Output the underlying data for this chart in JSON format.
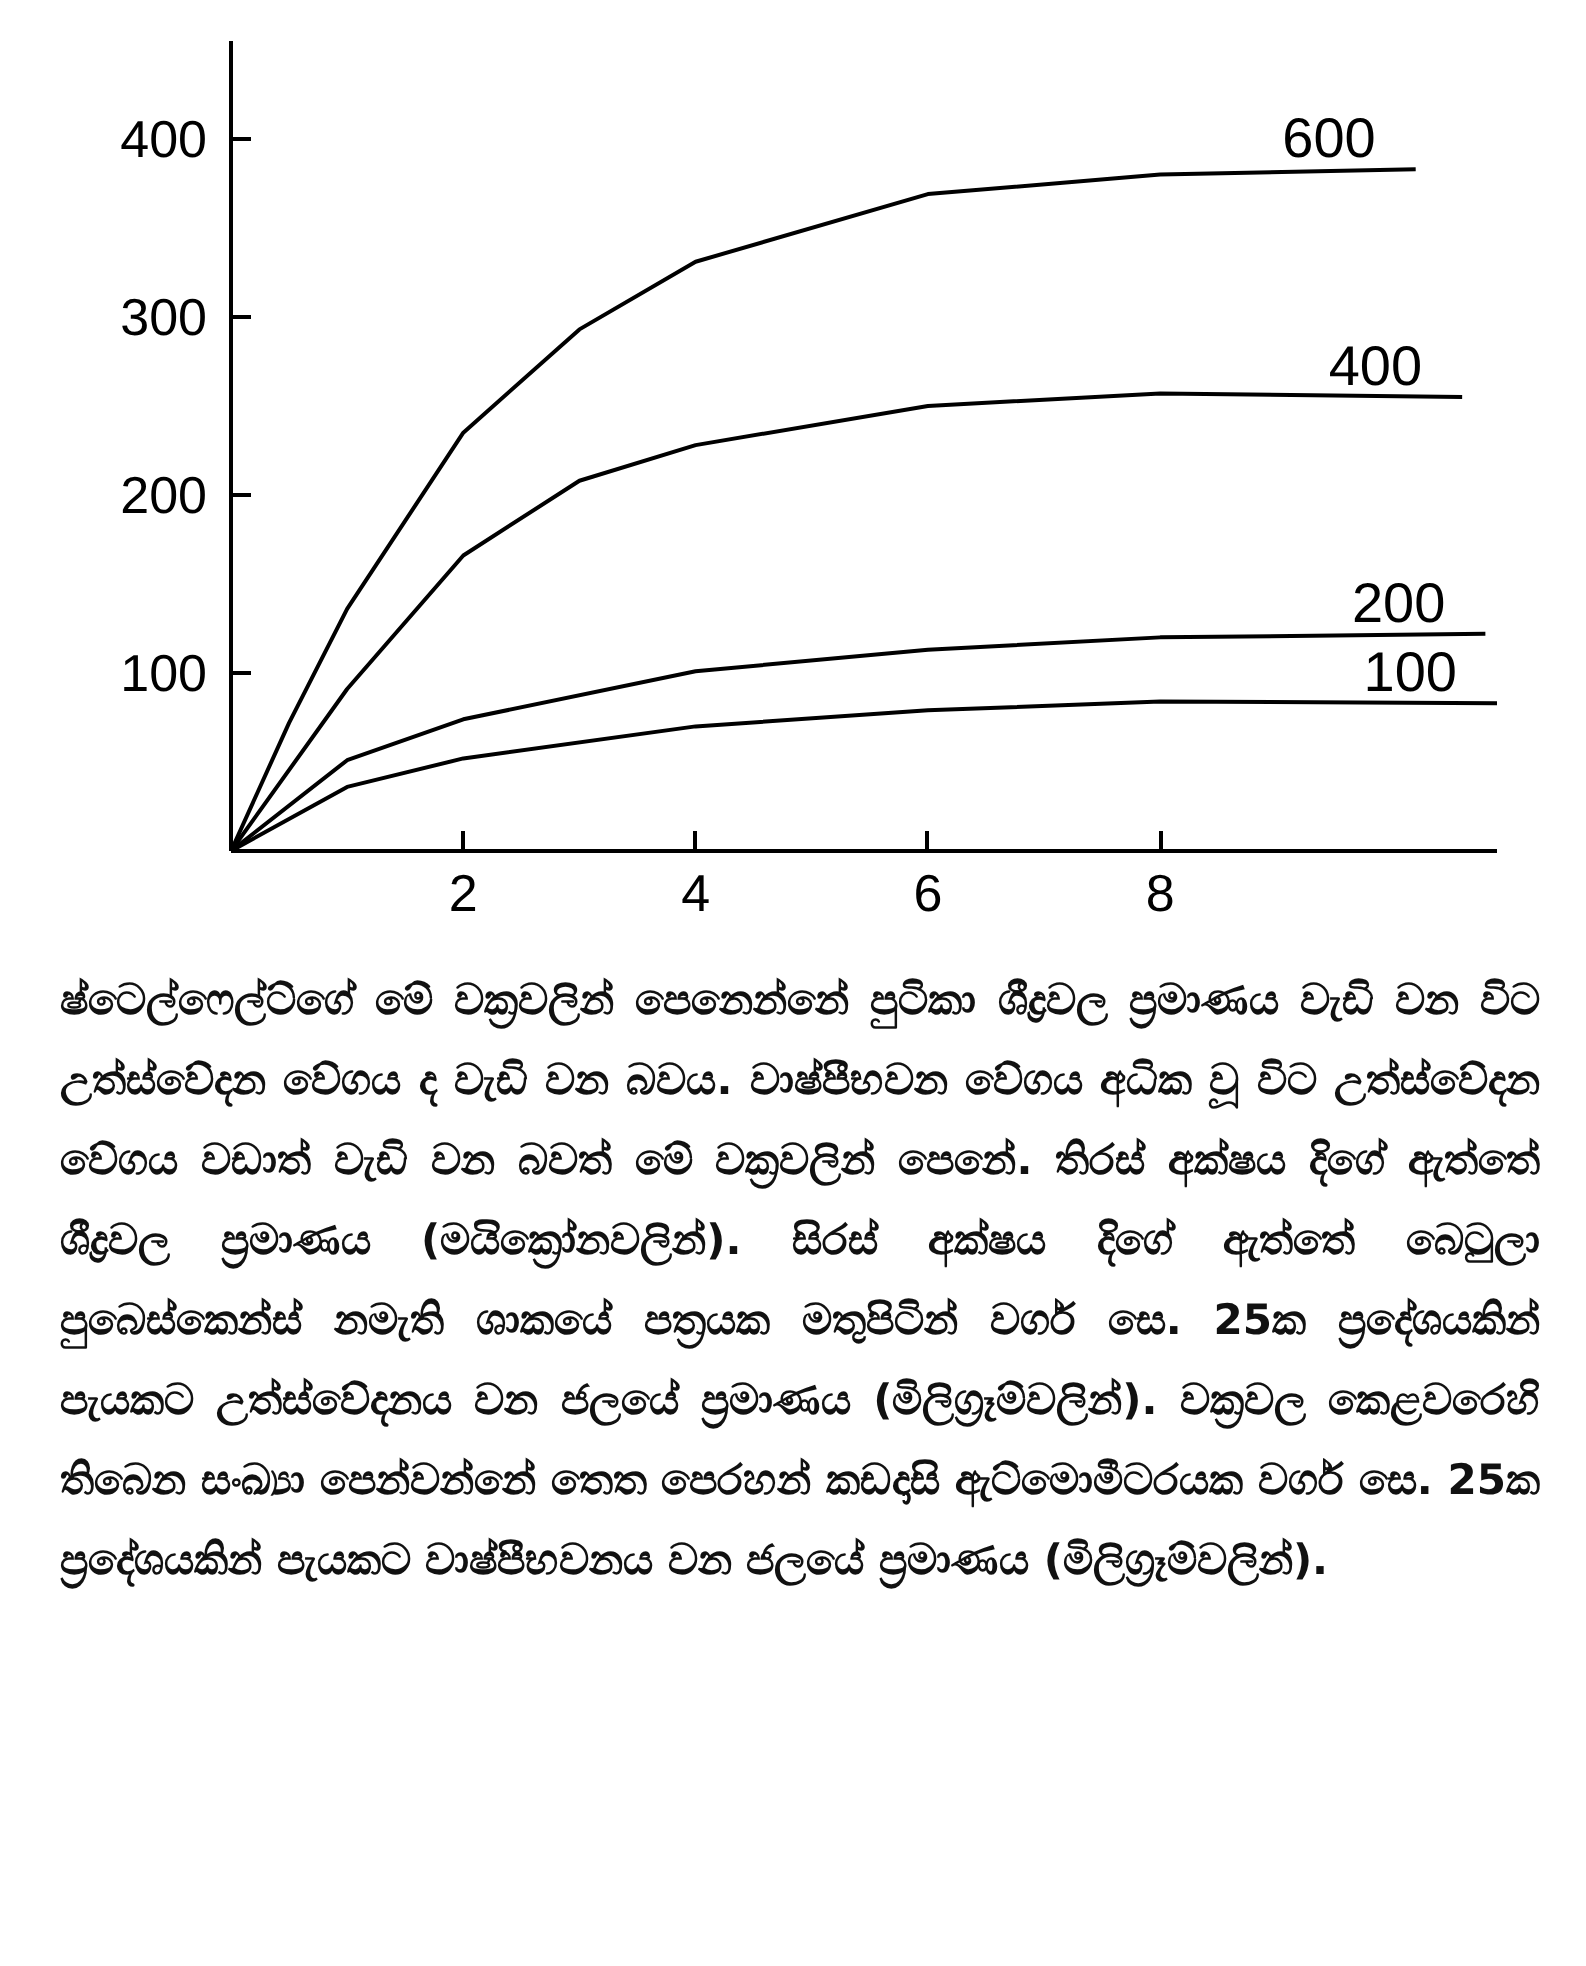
{
  "chart_data": {
    "type": "line",
    "xlim": [
      0,
      10.9
    ],
    "ylim": [
      0,
      455
    ],
    "xticks": [
      2,
      4,
      6,
      8
    ],
    "yticks": [
      100,
      200,
      300,
      400
    ],
    "marker": "none",
    "line_style": "solid",
    "series": [
      {
        "name": "600",
        "color": "#000000",
        "x": [
          0,
          0.5,
          1,
          2,
          3,
          4,
          6,
          8,
          10.2
        ],
        "values": [
          0,
          72,
          136,
          235,
          293,
          331,
          369,
          380,
          383
        ]
      },
      {
        "name": "400",
        "color": "#000000",
        "x": [
          0,
          1,
          2,
          3,
          4,
          6,
          8,
          10.6
        ],
        "values": [
          0,
          91,
          166,
          208,
          228,
          250,
          257,
          255
        ]
      },
      {
        "name": "200",
        "color": "#000000",
        "x": [
          0,
          1,
          2,
          4,
          6,
          8,
          10.8
        ],
        "values": [
          0,
          51,
          74,
          101,
          113,
          120,
          122
        ]
      },
      {
        "name": "100",
        "color": "#000000",
        "x": [
          0,
          1,
          2,
          4,
          6,
          8,
          10.9
        ],
        "values": [
          0,
          36,
          52,
          70,
          79,
          84,
          83
        ]
      }
    ],
    "annotations": [
      "ෂ්ටෙල්ෆෙල්ට්ගේ මේ වක්‍රවලින් පෙනෙන්නේ පුටිකා ශීද්‍රවල ප්‍රමාණය වැඩි වන විට උත්ස්වේදන වේගය ද වැඩි වන බවය. වාෂ්පීභවන වේගය අධික වූ විට උත්ස්වේදන වේගය වඩාත් වැඩි වන බවත් මේ වක්‍රවලින් පෙනේ. තිරස් අක්ෂය දිගේ ඇත්තේ ශීද්‍රවල ප්‍රමාණය (මයික්‍රෝනවලින්). සිරස් අක්ෂය දිගේ ඇත්තේ බෙටුලා පුබෙස්කෙන්ස් නමැති ශාකයේ පත්‍රයක මතුපිටින් වර්ග සෙ. 25ක ප්‍රදේශයකින් පැයකට උත්ස්වේදනය වන ජලයේ ප්‍රමාණය (මිලිග්‍රෑම්වලින්). වක්‍රවල කෙළවරෙහි තිබෙන සංඛ්‍යා පෙන්වන්නේ තෙත පෙරහන් කඩදාසි ඇට්මොමීටරයක වර්ග සෙ. 25ක ප්‍රදේශයකින් පැයකට වාෂ්පීභවනය වන ජලයේ ප්‍රමාණය (මිලිග්‍රෑම්වලින්)."
    ]
  }
}
